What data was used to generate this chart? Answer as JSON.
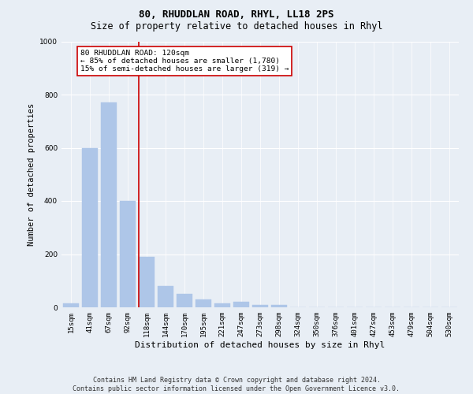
{
  "title1": "80, RHUDDLAN ROAD, RHYL, LL18 2PS",
  "title2": "Size of property relative to detached houses in Rhyl",
  "xlabel": "Distribution of detached houses by size in Rhyl",
  "ylabel": "Number of detached properties",
  "footer1": "Contains HM Land Registry data © Crown copyright and database right 2024.",
  "footer2": "Contains public sector information licensed under the Open Government Licence v3.0.",
  "annotation_title": "80 RHUDDLAN ROAD: 120sqm",
  "annotation_line1": "← 85% of detached houses are smaller (1,780)",
  "annotation_line2": "15% of semi-detached houses are larger (319) →",
  "bar_categories": [
    "15sqm",
    "41sqm",
    "67sqm",
    "92sqm",
    "118sqm",
    "144sqm",
    "170sqm",
    "195sqm",
    "221sqm",
    "247sqm",
    "273sqm",
    "298sqm",
    "324sqm",
    "350sqm",
    "376sqm",
    "401sqm",
    "427sqm",
    "453sqm",
    "479sqm",
    "504sqm",
    "530sqm"
  ],
  "bar_values": [
    15,
    600,
    770,
    400,
    190,
    80,
    50,
    30,
    15,
    20,
    10,
    10,
    0,
    0,
    0,
    0,
    0,
    0,
    0,
    0,
    0
  ],
  "bar_color": "#aec6e8",
  "bar_edgecolor": "#aec6e8",
  "vline_color": "#cc0000",
  "annotation_box_edgecolor": "#cc0000",
  "annotation_box_facecolor": "#ffffff",
  "background_color": "#e8eef5",
  "ylim": [
    0,
    1000
  ],
  "yticks": [
    0,
    200,
    400,
    600,
    800,
    1000
  ],
  "grid_color": "#ffffff",
  "title1_fontsize": 9,
  "title2_fontsize": 8.5,
  "ylabel_fontsize": 7.5,
  "xlabel_fontsize": 8,
  "tick_fontsize": 6.5,
  "annotation_fontsize": 6.8,
  "footer_fontsize": 6.0
}
